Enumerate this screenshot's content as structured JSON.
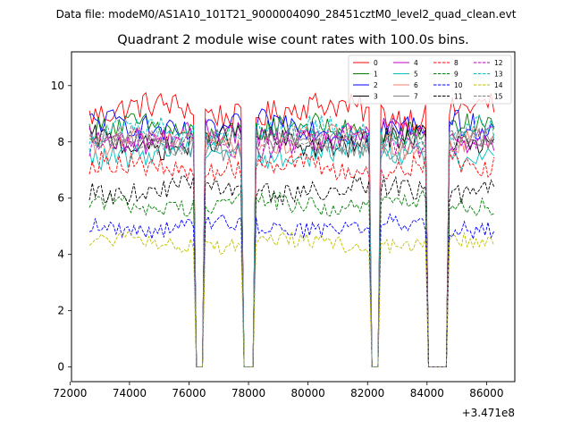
{
  "suptitle": "Data file: modeM0/AS1A10_101T21_9000004090_28451cztM0_level2_quad_clean.evt",
  "chart_data": {
    "type": "line",
    "title": "Quadrant 2 module wise count rates with 100.0s bins.",
    "xlabel": "",
    "ylabel": "",
    "x_offset_label": "+3.471e8",
    "xlim": [
      72050,
      86950
    ],
    "ylim": [
      -0.52,
      11.2
    ],
    "xticks": [
      72000,
      74000,
      76000,
      78000,
      80000,
      82000,
      84000,
      86000
    ],
    "xtick_labels": [
      "72000",
      "74000",
      "76000",
      "78000",
      "80000",
      "82000",
      "84000",
      "86000"
    ],
    "yticks": [
      0,
      2,
      4,
      6,
      8,
      10
    ],
    "ytick_labels": [
      "0",
      "2",
      "4",
      "6",
      "8",
      "10"
    ],
    "x_start": 72650,
    "x_step": 100,
    "gaps": [
      [
        76250,
        76450
      ],
      [
        77850,
        78150
      ],
      [
        82150,
        82350
      ],
      [
        84050,
        84650
      ]
    ],
    "legend_position": "top-right",
    "legend_columns": 4,
    "series": [
      {
        "name": "0",
        "color": "#ff0000",
        "style": "solid",
        "level": 9.1
      },
      {
        "name": "1",
        "color": "#008000",
        "style": "solid",
        "level": 8.4
      },
      {
        "name": "2",
        "color": "#0000ff",
        "style": "solid",
        "level": 8.5
      },
      {
        "name": "3",
        "color": "#000000",
        "style": "solid",
        "level": 8.0
      },
      {
        "name": "4",
        "color": "#bf00bf",
        "style": "solid",
        "level": 8.2
      },
      {
        "name": "5",
        "color": "#00bfbf",
        "style": "solid",
        "level": 7.6
      },
      {
        "name": "6",
        "color": "#fa8072",
        "style": "solid",
        "level": 8.0
      },
      {
        "name": "7",
        "color": "#808080",
        "style": "solid",
        "level": 7.9
      },
      {
        "name": "8",
        "color": "#ff0000",
        "style": "dashed",
        "level": 7.1
      },
      {
        "name": "9",
        "color": "#008000",
        "style": "dashed",
        "level": 5.8
      },
      {
        "name": "10",
        "color": "#0000ff",
        "style": "dashed",
        "level": 5.0
      },
      {
        "name": "11",
        "color": "#000000",
        "style": "dashed",
        "level": 6.3
      },
      {
        "name": "12",
        "color": "#bf00bf",
        "style": "dashed",
        "level": 8.0
      },
      {
        "name": "13",
        "color": "#00bfbf",
        "style": "dashed",
        "level": 8.3
      },
      {
        "name": "14",
        "color": "#bfbf00",
        "style": "dashed",
        "level": 4.4
      },
      {
        "name": "15",
        "color": "#808080",
        "style": "dashed",
        "level": 8.1
      }
    ]
  }
}
